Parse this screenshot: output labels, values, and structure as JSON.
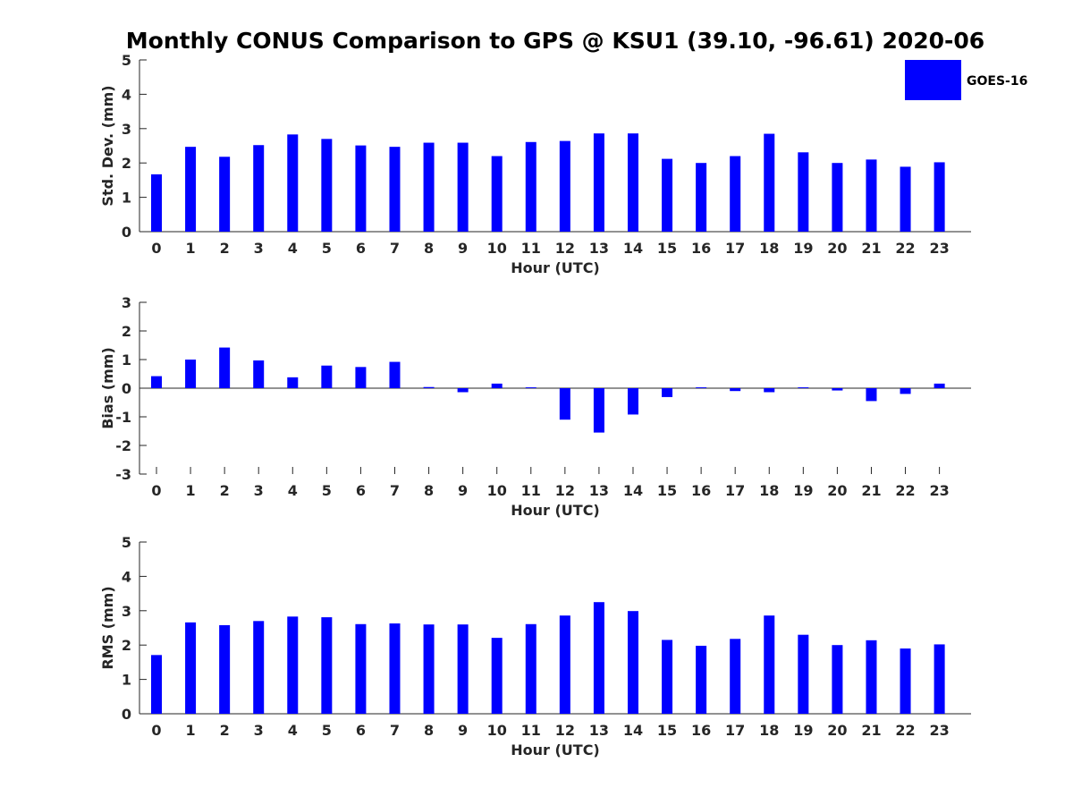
{
  "title": "Monthly CONUS Comparison to GPS @ KSU1 (39.10, -96.61) 2020-06",
  "legend": {
    "label": "GOES-16",
    "color": "#0000ff",
    "placement": "top-right"
  },
  "chart_data": [
    {
      "type": "bar",
      "ylabel": "Std. Dev. (mm)",
      "xlabel": "Hour (UTC)",
      "ylim": [
        0,
        5
      ],
      "yticks": [
        0,
        1,
        2,
        3,
        4,
        5
      ],
      "categories": [
        "0",
        "1",
        "2",
        "3",
        "4",
        "5",
        "6",
        "7",
        "8",
        "9",
        "10",
        "11",
        "12",
        "13",
        "14",
        "15",
        "16",
        "17",
        "18",
        "19",
        "20",
        "21",
        "22",
        "23"
      ],
      "series": [
        {
          "name": "GOES-16",
          "color": "#0000ff",
          "values": [
            1.67,
            2.47,
            2.18,
            2.52,
            2.83,
            2.7,
            2.51,
            2.47,
            2.59,
            2.59,
            2.2,
            2.61,
            2.64,
            2.86,
            2.86,
            2.12,
            2.0,
            2.2,
            2.85,
            2.31,
            2.0,
            2.1,
            1.89,
            2.02
          ]
        }
      ]
    },
    {
      "type": "bar",
      "ylabel": "Bias (mm)",
      "xlabel": "Hour (UTC)",
      "ylim": [
        -3,
        3
      ],
      "yticks": [
        -3,
        -2,
        -1,
        0,
        1,
        2,
        3
      ],
      "categories": [
        "0",
        "1",
        "2",
        "3",
        "4",
        "5",
        "6",
        "7",
        "8",
        "9",
        "10",
        "11",
        "12",
        "13",
        "14",
        "15",
        "16",
        "17",
        "18",
        "19",
        "20",
        "21",
        "22",
        "23"
      ],
      "series": [
        {
          "name": "GOES-16",
          "color": "#0000ff",
          "values": [
            0.42,
            1.0,
            1.42,
            0.97,
            0.38,
            0.79,
            0.74,
            0.92,
            0.04,
            -0.14,
            0.16,
            0.03,
            -1.1,
            -1.55,
            -0.92,
            -0.31,
            0.03,
            -0.1,
            -0.14,
            0.03,
            -0.08,
            -0.45,
            -0.2,
            0.16
          ]
        }
      ]
    },
    {
      "type": "bar",
      "ylabel": "RMS (mm)",
      "xlabel": "Hour (UTC)",
      "ylim": [
        0,
        5
      ],
      "yticks": [
        0,
        1,
        2,
        3,
        4,
        5
      ],
      "categories": [
        "0",
        "1",
        "2",
        "3",
        "4",
        "5",
        "6",
        "7",
        "8",
        "9",
        "10",
        "11",
        "12",
        "13",
        "14",
        "15",
        "16",
        "17",
        "18",
        "19",
        "20",
        "21",
        "22",
        "23"
      ],
      "series": [
        {
          "name": "GOES-16",
          "color": "#0000ff",
          "values": [
            1.71,
            2.66,
            2.58,
            2.7,
            2.83,
            2.81,
            2.61,
            2.63,
            2.6,
            2.6,
            2.21,
            2.61,
            2.86,
            3.25,
            2.99,
            2.15,
            1.98,
            2.18,
            2.86,
            2.3,
            2.0,
            2.14,
            1.9,
            2.02
          ]
        }
      ]
    }
  ]
}
